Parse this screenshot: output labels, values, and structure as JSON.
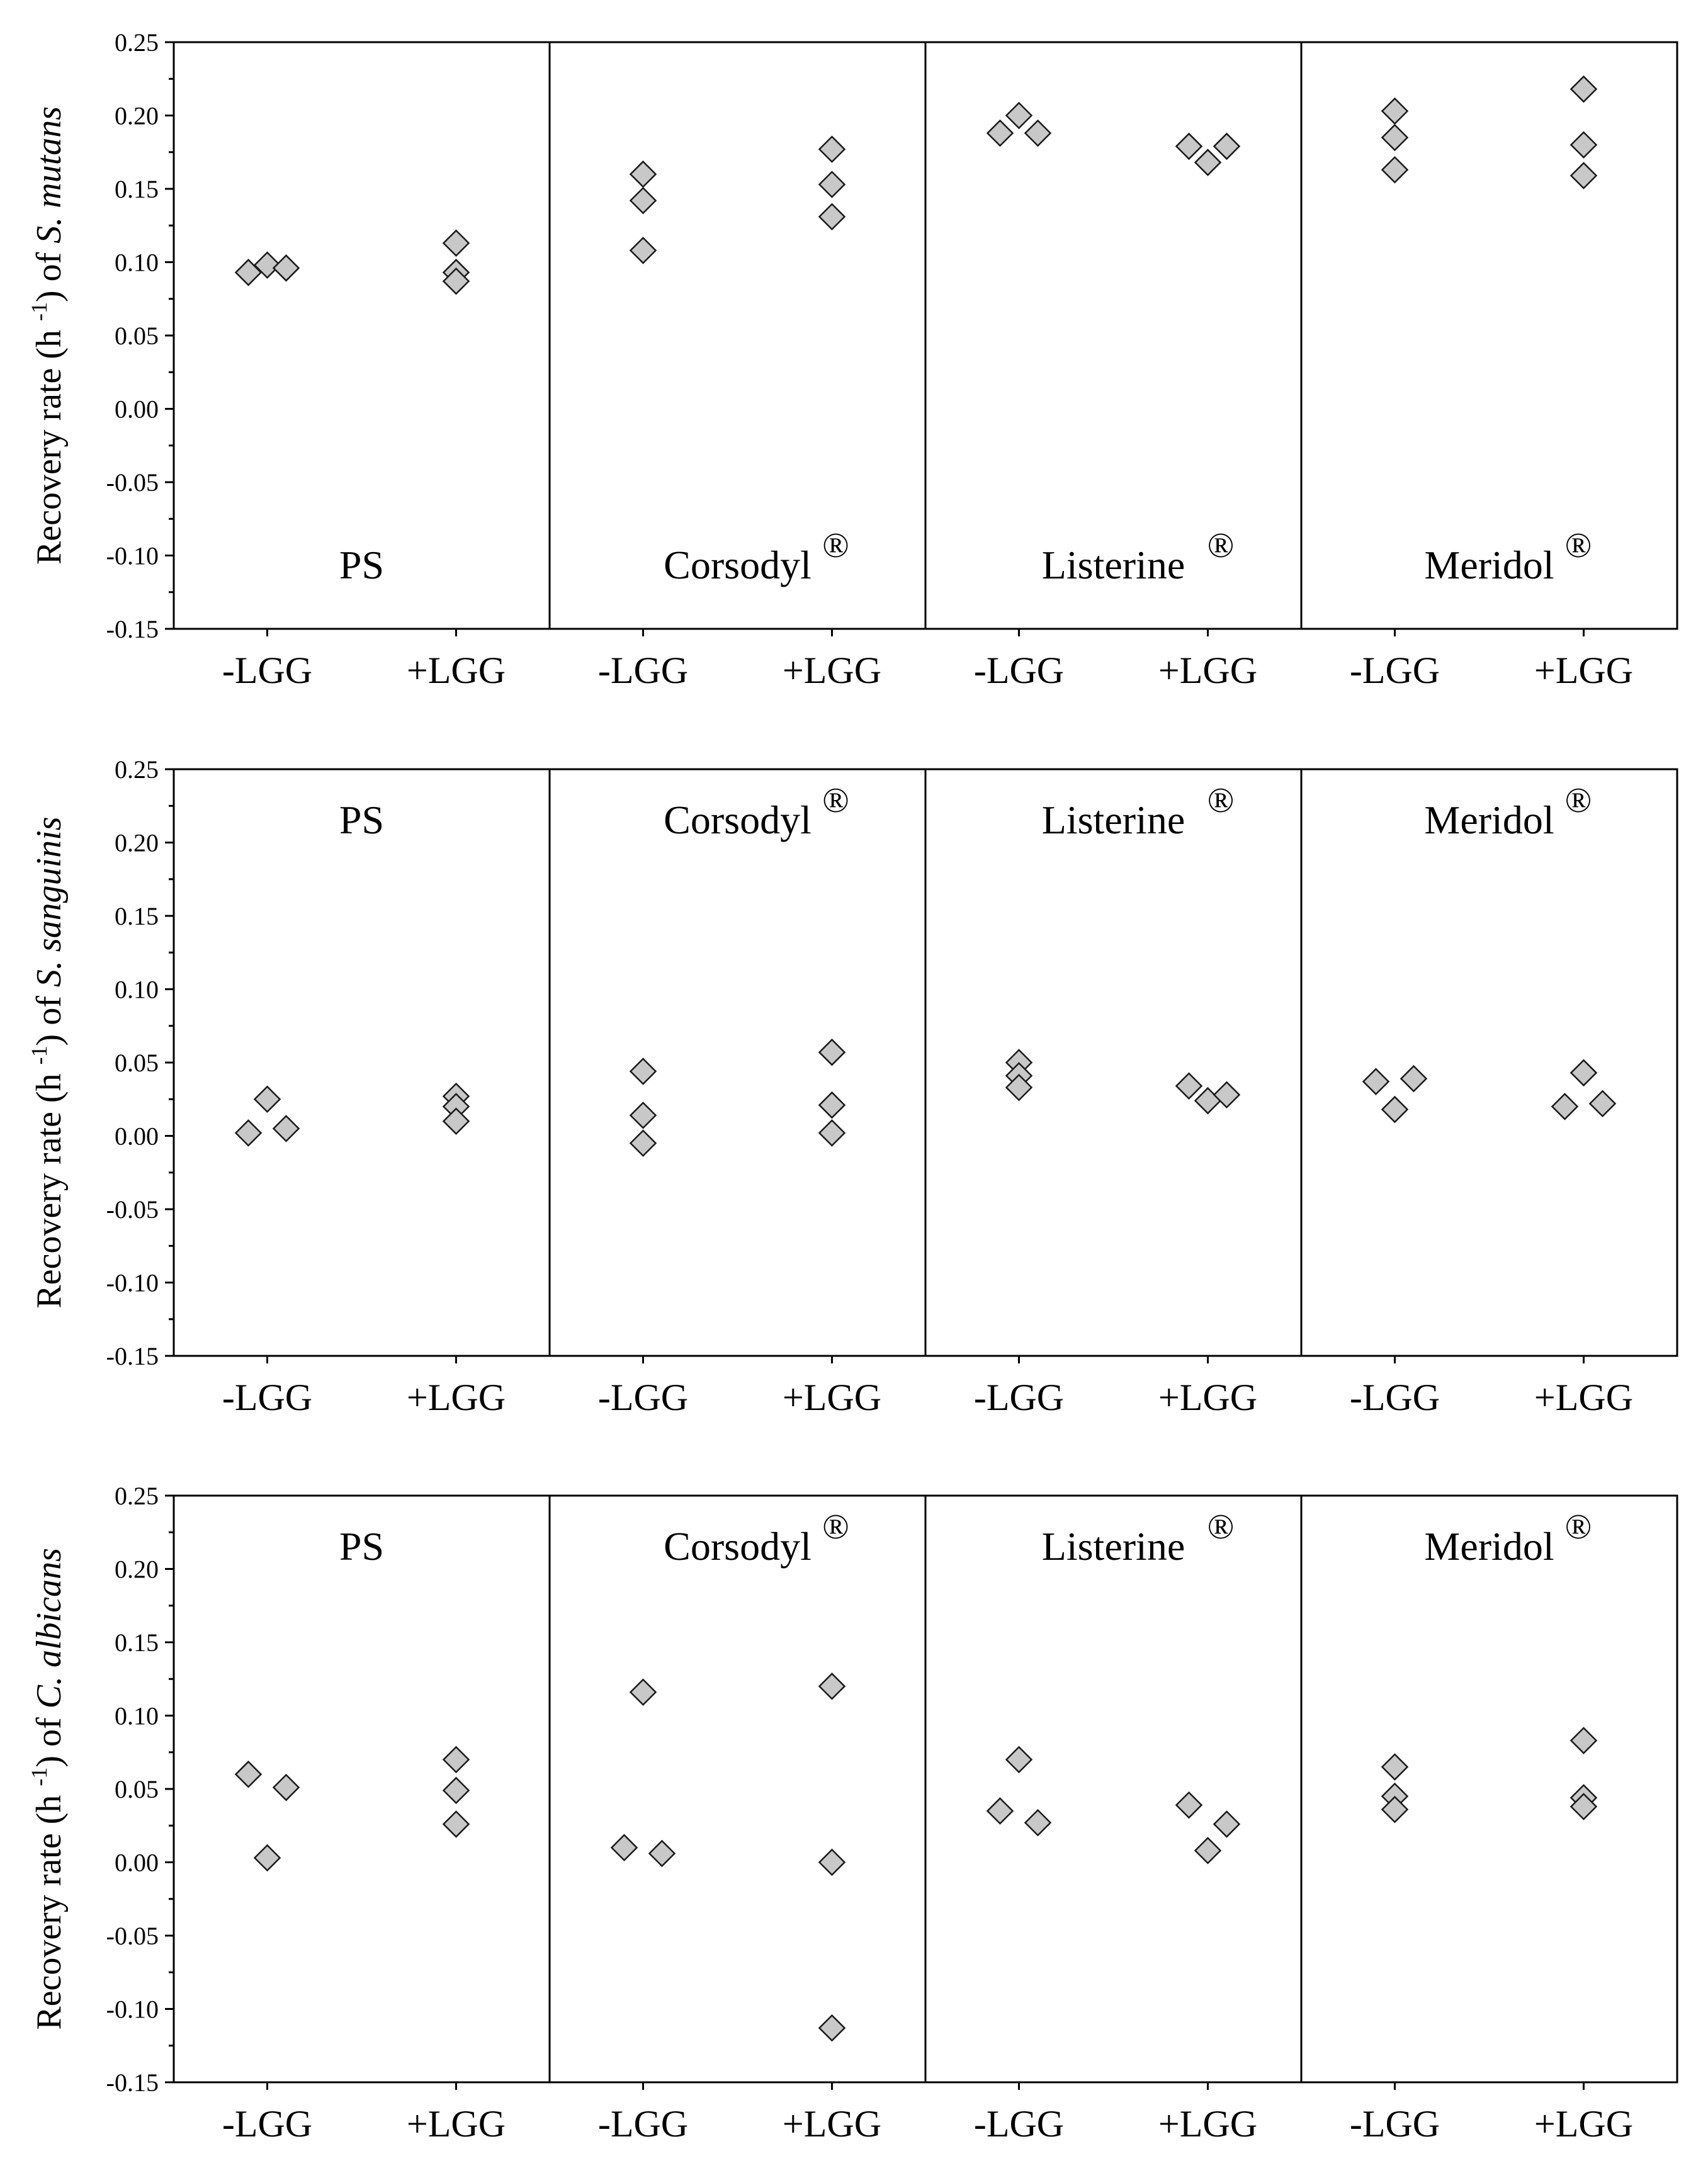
{
  "chart_data": [
    {
      "type": "scatter",
      "ylabel": {
        "prefix": "Recovery rate (h ",
        "sup": "-1",
        "middle": ")  of ",
        "organism": "S. mutans"
      },
      "ylim": [
        -0.15,
        0.25
      ],
      "yticks": [
        "0.25",
        "0.20",
        "0.15",
        "0.10",
        "0.05",
        "0.00",
        "-0.05",
        "-0.10",
        "-0.15"
      ],
      "ytick_values": [
        0.25,
        0.2,
        0.15,
        0.1,
        0.05,
        0.0,
        -0.05,
        -0.1,
        -0.15
      ],
      "label_position": "bottom",
      "panels": [
        {
          "name": "PS",
          "mark": "",
          "groups": [
            {
              "label": "-LGG",
              "points": [
                {
                  "offset": -1,
                  "y": 0.093
                },
                {
                  "offset": 0,
                  "y": 0.098
                },
                {
                  "offset": 1,
                  "y": 0.096
                }
              ]
            },
            {
              "label": "+LGG",
              "points": [
                {
                  "offset": 0,
                  "y": 0.113
                },
                {
                  "offset": 0,
                  "y": 0.093
                },
                {
                  "offset": 0,
                  "y": 0.087
                }
              ]
            }
          ]
        },
        {
          "name": "Corsodyl",
          "mark": "®",
          "groups": [
            {
              "label": "-LGG",
              "points": [
                {
                  "offset": 0,
                  "y": 0.16
                },
                {
                  "offset": 0,
                  "y": 0.142
                },
                {
                  "offset": 0,
                  "y": 0.108
                }
              ]
            },
            {
              "label": "+LGG",
              "points": [
                {
                  "offset": 0,
                  "y": 0.177
                },
                {
                  "offset": 0,
                  "y": 0.153
                },
                {
                  "offset": 0,
                  "y": 0.131
                }
              ]
            }
          ]
        },
        {
          "name": "Listerine",
          "mark": "®",
          "groups": [
            {
              "label": "-LGG",
              "points": [
                {
                  "offset": -1,
                  "y": 0.188
                },
                {
                  "offset": 0,
                  "y": 0.2
                },
                {
                  "offset": 1,
                  "y": 0.188
                }
              ]
            },
            {
              "label": "+LGG",
              "points": [
                {
                  "offset": -1,
                  "y": 0.179
                },
                {
                  "offset": 0,
                  "y": 0.168
                },
                {
                  "offset": 1,
                  "y": 0.179
                }
              ]
            }
          ]
        },
        {
          "name": "Meridol",
          "mark": "®",
          "groups": [
            {
              "label": "-LGG",
              "points": [
                {
                  "offset": 0,
                  "y": 0.203
                },
                {
                  "offset": 0,
                  "y": 0.185
                },
                {
                  "offset": 0,
                  "y": 0.163
                }
              ]
            },
            {
              "label": "+LGG",
              "points": [
                {
                  "offset": 0,
                  "y": 0.218
                },
                {
                  "offset": 0,
                  "y": 0.18
                },
                {
                  "offset": 0,
                  "y": 0.159
                }
              ]
            }
          ]
        }
      ],
      "xcategories": [
        "-LGG",
        "+LGG",
        "-LGG",
        "+LGG",
        "-LGG",
        "+LGG",
        "-LGG",
        "+LGG"
      ]
    },
    {
      "type": "scatter",
      "ylabel": {
        "prefix": "Recovery rate (h ",
        "sup": "-1",
        "middle": ")  of ",
        "organism": "S. sanguinis"
      },
      "ylim": [
        -0.15,
        0.25
      ],
      "yticks": [
        "0.25",
        "0.20",
        "0.15",
        "0.10",
        "0.05",
        "0.00",
        "-0.05",
        "-0.10",
        "-0.15"
      ],
      "ytick_values": [
        0.25,
        0.2,
        0.15,
        0.1,
        0.05,
        0.0,
        -0.05,
        -0.1,
        -0.15
      ],
      "label_position": "top",
      "panels": [
        {
          "name": "PS",
          "mark": "",
          "groups": [
            {
              "label": "-LGG",
              "points": [
                {
                  "offset": -1,
                  "y": 0.002
                },
                {
                  "offset": 0,
                  "y": 0.025
                },
                {
                  "offset": 1,
                  "y": 0.005
                }
              ]
            },
            {
              "label": "+LGG",
              "points": [
                {
                  "offset": 0,
                  "y": 0.027
                },
                {
                  "offset": 0,
                  "y": 0.02
                },
                {
                  "offset": 0,
                  "y": 0.01
                }
              ]
            }
          ]
        },
        {
          "name": "Corsodyl",
          "mark": "®",
          "groups": [
            {
              "label": "-LGG",
              "points": [
                {
                  "offset": 0,
                  "y": 0.044
                },
                {
                  "offset": 0,
                  "y": 0.014
                },
                {
                  "offset": 0,
                  "y": -0.005
                }
              ]
            },
            {
              "label": "+LGG",
              "points": [
                {
                  "offset": 0,
                  "y": 0.057
                },
                {
                  "offset": 0,
                  "y": 0.021
                },
                {
                  "offset": 0,
                  "y": 0.002
                }
              ]
            }
          ]
        },
        {
          "name": "Listerine",
          "mark": "®",
          "groups": [
            {
              "label": "-LGG",
              "points": [
                {
                  "offset": 0,
                  "y": 0.05
                },
                {
                  "offset": 0,
                  "y": 0.041
                },
                {
                  "offset": 0,
                  "y": 0.033
                }
              ]
            },
            {
              "label": "+LGG",
              "points": [
                {
                  "offset": -1,
                  "y": 0.034
                },
                {
                  "offset": 0,
                  "y": 0.024
                },
                {
                  "offset": 1,
                  "y": 0.028
                }
              ]
            }
          ]
        },
        {
          "name": "Meridol",
          "mark": "®",
          "groups": [
            {
              "label": "-LGG",
              "points": [
                {
                  "offset": -1,
                  "y": 0.037
                },
                {
                  "offset": 0,
                  "y": 0.018
                },
                {
                  "offset": 1,
                  "y": 0.039
                }
              ]
            },
            {
              "label": "+LGG",
              "points": [
                {
                  "offset": -1,
                  "y": 0.02
                },
                {
                  "offset": 0,
                  "y": 0.043
                },
                {
                  "offset": 1,
                  "y": 0.022
                }
              ]
            }
          ]
        }
      ],
      "xcategories": [
        "-LGG",
        "+LGG",
        "-LGG",
        "+LGG",
        "-LGG",
        "+LGG",
        "-LGG",
        "+LGG"
      ]
    },
    {
      "type": "scatter",
      "ylabel": {
        "prefix": "Recovery rate (h ",
        "sup": "-1",
        "middle": ")  of ",
        "organism": "C. albicans"
      },
      "ylim": [
        -0.15,
        0.25
      ],
      "yticks": [
        "0.25",
        "0.20",
        "0.15",
        "0.10",
        "0.05",
        "0.00",
        "-0.05",
        "-0.10",
        "-0.15"
      ],
      "ytick_values": [
        0.25,
        0.2,
        0.15,
        0.1,
        0.05,
        0.0,
        -0.05,
        -0.1,
        -0.15
      ],
      "label_position": "top",
      "panels": [
        {
          "name": "PS",
          "mark": "",
          "groups": [
            {
              "label": "-LGG",
              "points": [
                {
                  "offset": -1,
                  "y": 0.06
                },
                {
                  "offset": 0,
                  "y": 0.003
                },
                {
                  "offset": 1,
                  "y": 0.051
                }
              ]
            },
            {
              "label": "+LGG",
              "points": [
                {
                  "offset": 0,
                  "y": 0.07
                },
                {
                  "offset": 0,
                  "y": 0.049
                },
                {
                  "offset": 0,
                  "y": 0.026
                }
              ]
            }
          ]
        },
        {
          "name": "Corsodyl",
          "mark": "®",
          "groups": [
            {
              "label": "-LGG",
              "points": [
                {
                  "offset": -1,
                  "y": 0.01
                },
                {
                  "offset": 0,
                  "y": 0.116
                },
                {
                  "offset": 1,
                  "y": 0.006
                }
              ]
            },
            {
              "label": "+LGG",
              "points": [
                {
                  "offset": 0,
                  "y": 0.12
                },
                {
                  "offset": 0,
                  "y": 0.0
                },
                {
                  "offset": 0,
                  "y": -0.113
                }
              ]
            }
          ]
        },
        {
          "name": "Listerine",
          "mark": "®",
          "groups": [
            {
              "label": "-LGG",
              "points": [
                {
                  "offset": -1,
                  "y": 0.035
                },
                {
                  "offset": 0,
                  "y": 0.07
                },
                {
                  "offset": 1,
                  "y": 0.027
                }
              ]
            },
            {
              "label": "+LGG",
              "points": [
                {
                  "offset": -1,
                  "y": 0.039
                },
                {
                  "offset": 0,
                  "y": 0.008
                },
                {
                  "offset": 1,
                  "y": 0.026
                }
              ]
            }
          ]
        },
        {
          "name": "Meridol",
          "mark": "®",
          "groups": [
            {
              "label": "-LGG",
              "points": [
                {
                  "offset": 0,
                  "y": 0.065
                },
                {
                  "offset": 0,
                  "y": 0.045
                },
                {
                  "offset": 0,
                  "y": 0.036
                }
              ]
            },
            {
              "label": "+LGG",
              "points": [
                {
                  "offset": 0,
                  "y": 0.083
                },
                {
                  "offset": 0,
                  "y": 0.044
                },
                {
                  "offset": 0,
                  "y": 0.038
                }
              ]
            }
          ]
        }
      ],
      "xcategories": [
        "-LGG",
        "+LGG",
        "-LGG",
        "+LGG",
        "-LGG",
        "+LGG",
        "-LGG",
        "+LGG"
      ]
    }
  ],
  "colors": {
    "marker_fill": "#c8c8c8",
    "marker_stroke": "#1a1a1a",
    "axis": "#000000"
  }
}
